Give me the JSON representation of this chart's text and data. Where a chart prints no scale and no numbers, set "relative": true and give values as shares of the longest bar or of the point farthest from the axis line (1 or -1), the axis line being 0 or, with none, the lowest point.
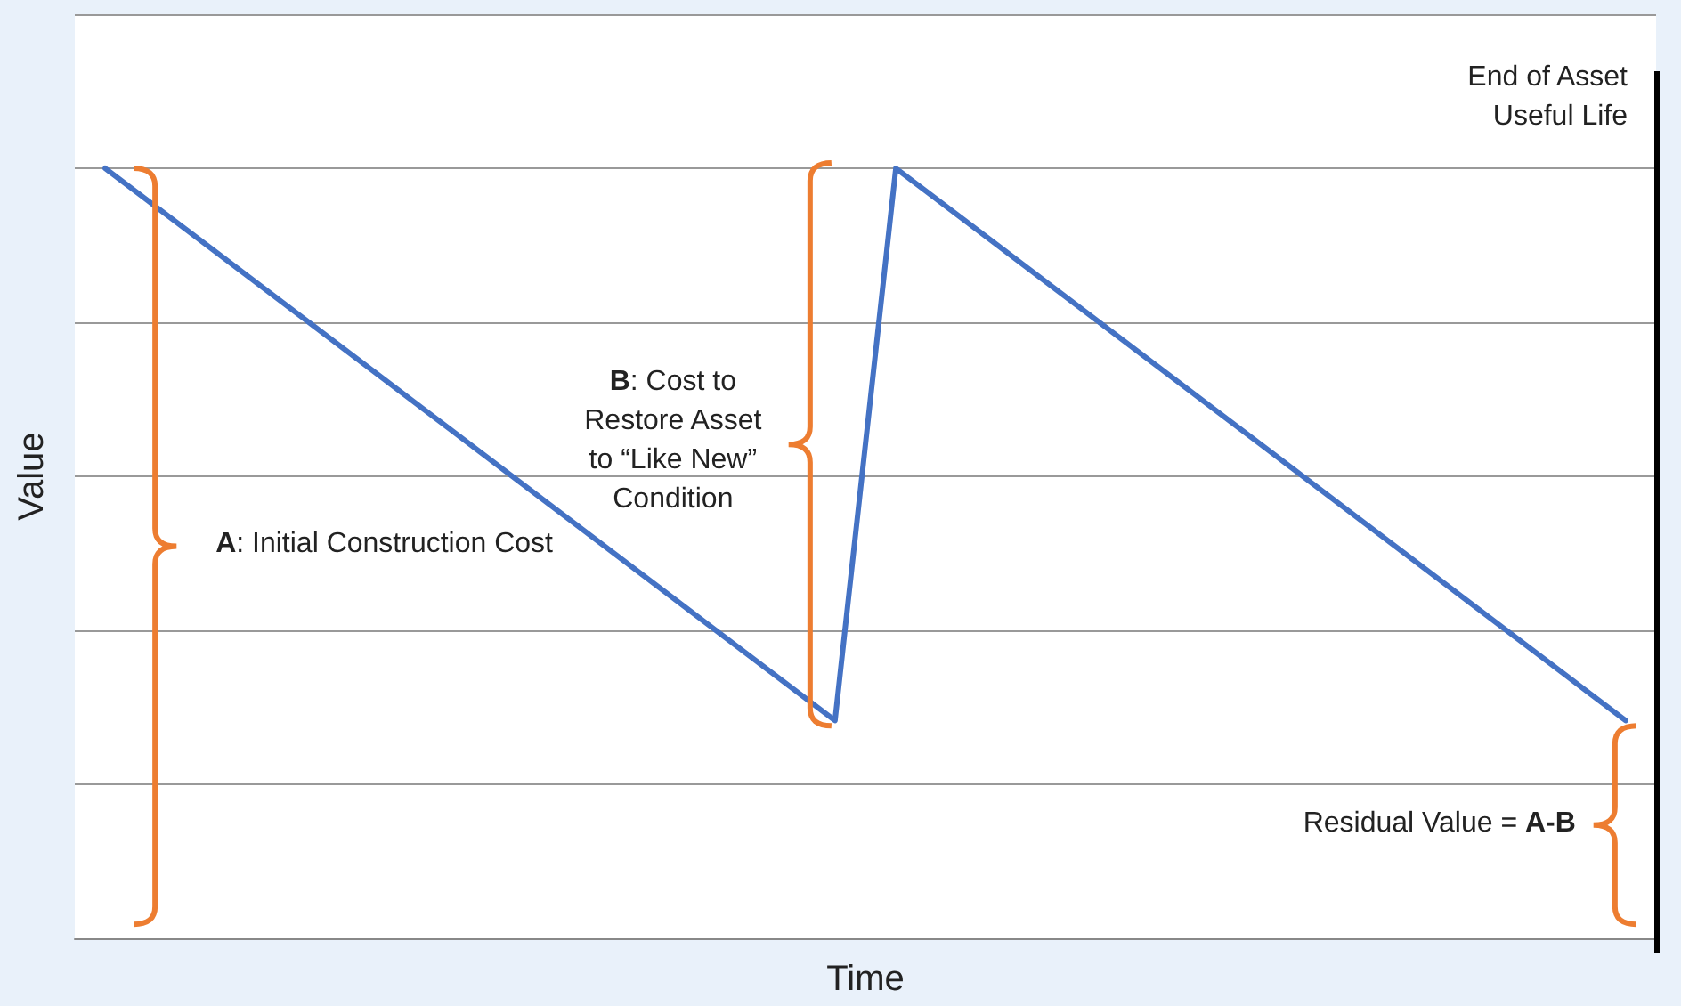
{
  "chart_data": {
    "type": "line",
    "relative": true,
    "xlabel": "Time",
    "ylabel": "Value",
    "categories": [
      null,
      null,
      null,
      null,
      null,
      null,
      null,
      null,
      null,
      null,
      null,
      null,
      null,
      null,
      null,
      null,
      null,
      null,
      null,
      null,
      null,
      null,
      null,
      null,
      null,
      null
    ],
    "series": [
      {
        "color": "#4472c4",
        "values": [
          1,
          null,
          null,
          null,
          null,
          null,
          null,
          null,
          null,
          null,
          null,
          null,
          0.283,
          1,
          null,
          null,
          null,
          null,
          null,
          null,
          null,
          null,
          null,
          null,
          null,
          0.283
        ]
      }
    ],
    "ref_lines": [
      {
        "axis": "x",
        "label": "End of Asset Useful Life",
        "color": "#000000"
      }
    ],
    "annotations": [
      "A: Initial Construction Cost",
      "B: Cost to Restore Asset to “Like New” Condition",
      "Residual Value = A-B"
    ],
    "grid": "y",
    "marker": "none",
    "line_style": "solid"
  }
}
